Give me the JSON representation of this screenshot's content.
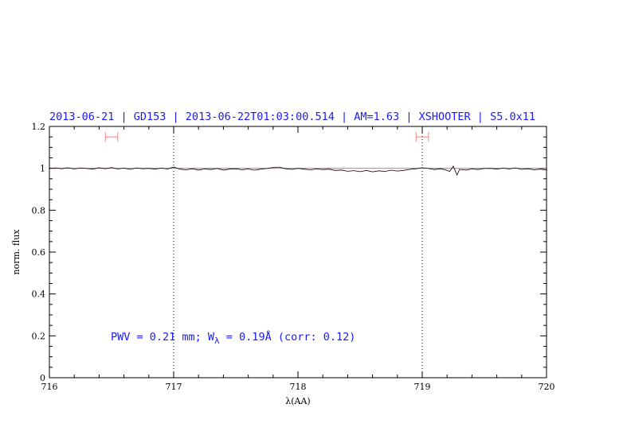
{
  "chart_data": {
    "type": "line",
    "title": "2013-06-21 | GD153 | 2013-06-22T01:03:00.514 | AM=1.63 | XSHOOTER | S5.0x11",
    "xlabel": "λ(AA)",
    "ylabel": "norm. flux",
    "xlim": [
      716,
      720
    ],
    "ylim": [
      0,
      1.2
    ],
    "x_ticks": [
      "716",
      "717",
      "718",
      "719",
      "720"
    ],
    "y_ticks": [
      "0",
      "0.2",
      "0.4",
      "0.6",
      "0.8",
      "1",
      "1.2"
    ],
    "grid": false,
    "annotation": {
      "prefix": "PWV = 0.21 mm; W",
      "sub": "λ",
      "suffix": " = 0.19Å (corr: 0.12)"
    },
    "reference_line": {
      "y": 1.0,
      "color": "#ff4d4d"
    },
    "vertical_markers": [
      717.0,
      719.0
    ],
    "range_markers": [
      {
        "x": [
          716.45,
          716.55
        ],
        "y": 1.15,
        "color": "#ff8080"
      },
      {
        "x": [
          718.95,
          719.05
        ],
        "y": 1.15,
        "color": "#ff8080"
      }
    ],
    "series": [
      {
        "color": "#000000",
        "x": [
          716.0,
          716.05,
          716.1,
          716.15,
          716.2,
          716.25,
          716.3,
          716.35,
          716.4,
          716.45,
          716.5,
          716.55,
          716.6,
          716.65,
          716.7,
          716.75,
          716.8,
          716.85,
          716.9,
          716.95,
          717.0,
          717.05,
          717.1,
          717.15,
          717.2,
          717.25,
          717.3,
          717.35,
          717.4,
          717.45,
          717.5,
          717.55,
          717.6,
          717.65,
          717.7,
          717.75,
          717.8,
          717.85,
          717.9,
          717.95,
          718.0,
          718.05,
          718.1,
          718.15,
          718.2,
          718.25,
          718.3,
          718.35,
          718.4,
          718.45,
          718.5,
          718.55,
          718.6,
          718.65,
          718.7,
          718.75,
          718.8,
          718.85,
          718.9,
          718.95,
          719.0,
          719.05,
          719.1,
          719.15,
          719.2,
          719.22,
          719.25,
          719.28,
          719.3,
          719.35,
          719.4,
          719.45,
          719.5,
          719.55,
          719.6,
          719.65,
          719.7,
          719.75,
          719.8,
          719.85,
          719.9,
          719.95,
          720.0
        ],
        "values": [
          1.0,
          1.002,
          0.998,
          1.003,
          0.997,
          1.002,
          0.999,
          0.996,
          1.003,
          0.998,
          1.004,
          0.997,
          1.001,
          0.995,
          1.002,
          0.998,
          1.0,
          0.996,
          1.001,
          0.997,
          1.006,
          0.996,
          0.993,
          0.998,
          0.992,
          0.997,
          0.994,
          0.999,
          0.992,
          0.996,
          0.998,
          0.993,
          0.997,
          0.991,
          0.996,
          0.999,
          1.004,
          1.006,
          0.998,
          0.995,
          1.0,
          0.996,
          0.993,
          0.997,
          0.994,
          0.996,
          0.99,
          0.992,
          0.986,
          0.989,
          0.984,
          0.99,
          0.983,
          0.988,
          0.985,
          0.991,
          0.987,
          0.99,
          0.995,
          0.998,
          1.003,
          0.999,
          0.994,
          0.998,
          0.99,
          0.985,
          1.01,
          0.968,
          0.995,
          0.992,
          0.997,
          0.994,
          0.999,
          1.0,
          0.996,
          1.001,
          0.997,
          1.002,
          0.995,
          0.998,
          0.993,
          0.996,
          0.992
        ]
      }
    ]
  }
}
